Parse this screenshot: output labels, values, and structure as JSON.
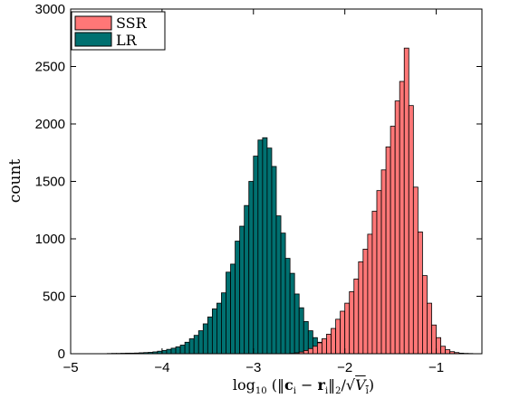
{
  "chart_data": {
    "type": "bar",
    "subtype": "overlapping-histogram",
    "title": "",
    "xlabel": "log10 ( ||c_i − r_i||_2 / √V_i )",
    "xlabel_parts": {
      "fn": "log",
      "fn_sub": "10",
      "c": "c",
      "r": "r",
      "i": "i",
      "norm_sub": "2",
      "minus": "−",
      "slash": "/",
      "sqrt": "√",
      "V": "V",
      "open": "(‖",
      "mid": "‖",
      "close": ")"
    },
    "ylabel": "count",
    "xlim": [
      -5,
      -0.5
    ],
    "ylim": [
      0,
      3000
    ],
    "xticks": [
      -5,
      -4,
      -3,
      -2,
      -1
    ],
    "xtick_labels": [
      "−5",
      "−4",
      "−3",
      "−2",
      "−1"
    ],
    "yticks": [
      0,
      500,
      1000,
      1500,
      2000,
      2500,
      3000
    ],
    "ytick_labels": [
      "0",
      "500",
      "1000",
      "1500",
      "2000",
      "2500",
      "3000"
    ],
    "grid": false,
    "legend_position": "top-left",
    "bin_width": 0.05,
    "series": [
      {
        "name": "LR",
        "color": "#007070",
        "bins": [
          [
            -4.6,
            2
          ],
          [
            -4.55,
            3
          ],
          [
            -4.5,
            3
          ],
          [
            -4.45,
            4
          ],
          [
            -4.4,
            5
          ],
          [
            -4.35,
            5
          ],
          [
            -4.3,
            6
          ],
          [
            -4.25,
            8
          ],
          [
            -4.2,
            10
          ],
          [
            -4.15,
            12
          ],
          [
            -4.1,
            16
          ],
          [
            -4.05,
            22
          ],
          [
            -4.0,
            28
          ],
          [
            -3.95,
            38
          ],
          [
            -3.9,
            48
          ],
          [
            -3.85,
            60
          ],
          [
            -3.8,
            75
          ],
          [
            -3.75,
            100
          ],
          [
            -3.7,
            130
          ],
          [
            -3.65,
            160
          ],
          [
            -3.6,
            200
          ],
          [
            -3.55,
            260
          ],
          [
            -3.5,
            320
          ],
          [
            -3.45,
            390
          ],
          [
            -3.4,
            440
          ],
          [
            -3.35,
            530
          ],
          [
            -3.3,
            710
          ],
          [
            -3.25,
            780
          ],
          [
            -3.2,
            980
          ],
          [
            -3.15,
            1110
          ],
          [
            -3.1,
            1290
          ],
          [
            -3.05,
            1500
          ],
          [
            -3.0,
            1720
          ],
          [
            -2.95,
            1860
          ],
          [
            -2.9,
            1880
          ],
          [
            -2.85,
            1790
          ],
          [
            -2.8,
            1630
          ],
          [
            -2.75,
            1200
          ],
          [
            -2.7,
            1050
          ],
          [
            -2.65,
            830
          ],
          [
            -2.6,
            700
          ],
          [
            -2.55,
            520
          ],
          [
            -2.5,
            400
          ],
          [
            -2.45,
            280
          ],
          [
            -2.4,
            200
          ],
          [
            -2.35,
            140
          ],
          [
            -2.3,
            100
          ],
          [
            -2.25,
            70
          ],
          [
            -2.2,
            45
          ],
          [
            -2.15,
            28
          ],
          [
            -2.1,
            18
          ],
          [
            -2.05,
            12
          ],
          [
            -2.0,
            8
          ],
          [
            -1.95,
            5
          ],
          [
            -1.9,
            3
          ],
          [
            -1.85,
            2
          ]
        ]
      },
      {
        "name": "SSR",
        "color": "#ff7777",
        "bins": [
          [
            -2.6,
            3
          ],
          [
            -2.55,
            8
          ],
          [
            -2.5,
            15
          ],
          [
            -2.45,
            28
          ],
          [
            -2.4,
            45
          ],
          [
            -2.35,
            65
          ],
          [
            -2.3,
            95
          ],
          [
            -2.25,
            130
          ],
          [
            -2.2,
            170
          ],
          [
            -2.15,
            220
          ],
          [
            -2.1,
            300
          ],
          [
            -2.05,
            370
          ],
          [
            -2.0,
            440
          ],
          [
            -1.95,
            540
          ],
          [
            -1.9,
            650
          ],
          [
            -1.85,
            800
          ],
          [
            -1.8,
            910
          ],
          [
            -1.75,
            1040
          ],
          [
            -1.7,
            1240
          ],
          [
            -1.65,
            1420
          ],
          [
            -1.6,
            1600
          ],
          [
            -1.55,
            1800
          ],
          [
            -1.5,
            1980
          ],
          [
            -1.45,
            2200
          ],
          [
            -1.4,
            2370
          ],
          [
            -1.35,
            2660
          ],
          [
            -1.3,
            2160
          ],
          [
            -1.25,
            1450
          ],
          [
            -1.2,
            1060
          ],
          [
            -1.15,
            680
          ],
          [
            -1.1,
            440
          ],
          [
            -1.05,
            250
          ],
          [
            -1.0,
            140
          ],
          [
            -0.95,
            65
          ],
          [
            -0.9,
            35
          ],
          [
            -0.85,
            18
          ],
          [
            -0.8,
            10
          ],
          [
            -0.75,
            5
          ],
          [
            -0.7,
            3
          ],
          [
            -0.65,
            2
          ]
        ]
      }
    ]
  }
}
